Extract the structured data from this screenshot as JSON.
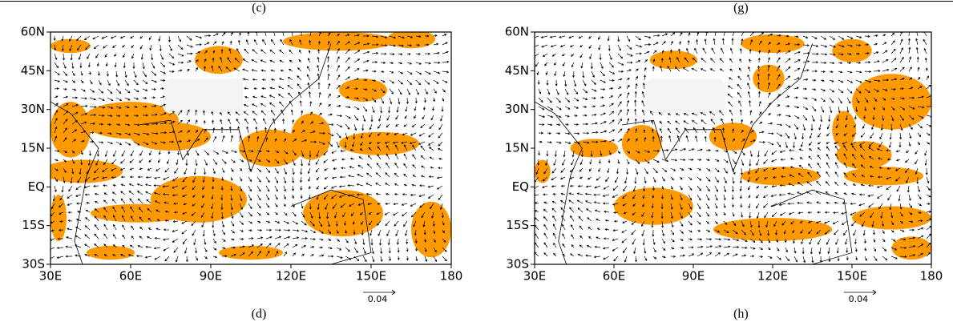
{
  "panels": [
    {
      "top_label": "(c)",
      "bottom_label": "(d)",
      "yticks": [
        "60N",
        "45N",
        "30N",
        "15N",
        "EQ",
        "15S",
        "30S"
      ],
      "xticks": [
        "30E",
        "60E",
        "90E",
        "120E",
        "150E",
        "180"
      ],
      "ref_vector": "0.04"
    },
    {
      "top_label": "(g)",
      "bottom_label": "(h)",
      "yticks": [
        "60N",
        "45N",
        "30N",
        "15N",
        "EQ",
        "15S",
        "30S"
      ],
      "xticks": [
        "30E",
        "60E",
        "90E",
        "120E",
        "150E",
        "180"
      ],
      "ref_vector": "0.04"
    }
  ]
}
